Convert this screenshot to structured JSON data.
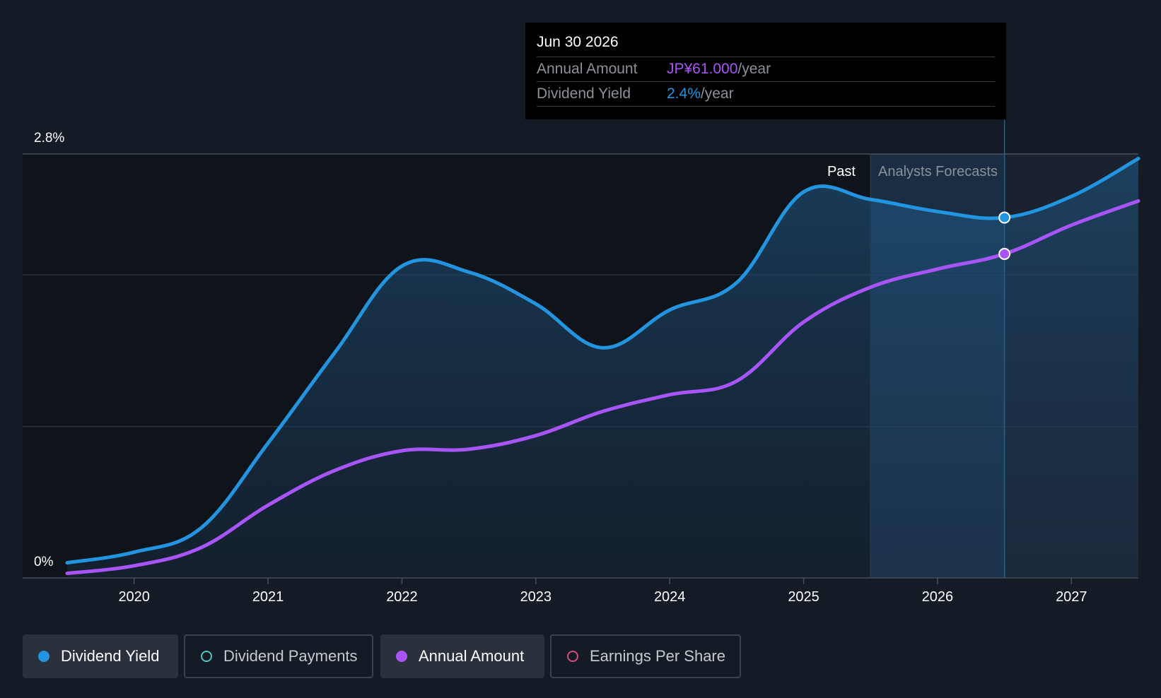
{
  "tooltip": {
    "date": "Jun 30 2026",
    "annual_amount_label": "Annual Amount",
    "annual_amount_value": "JP¥61.000",
    "dividend_yield_label": "Dividend Yield",
    "dividend_yield_value": "2.4%",
    "unit": "/year"
  },
  "regions": {
    "past": "Past",
    "forecast": "Analysts Forecasts"
  },
  "legend": [
    {
      "label": "Dividend Yield",
      "color": "#2394df",
      "active": true,
      "filled": true
    },
    {
      "label": "Dividend Payments",
      "color": "#4fc4c4",
      "active": false,
      "filled": false
    },
    {
      "label": "Annual Amount",
      "color": "#a855f7",
      "active": true,
      "filled": true
    },
    {
      "label": "Earnings Per Share",
      "color": "#d0507a",
      "active": false,
      "filled": false
    }
  ],
  "chart_data": {
    "type": "line",
    "y_ticks": [
      "2.8%",
      "0%"
    ],
    "ylim": [
      0,
      2.8
    ],
    "x_ticks": [
      "2020",
      "2021",
      "2022",
      "2023",
      "2024",
      "2025",
      "2026",
      "2027"
    ],
    "xlim": [
      2019.5,
      2027.5
    ],
    "forecast_start": 2025.5,
    "highlight_x": 2026.5,
    "series": [
      {
        "name": "Dividend Yield",
        "color": "#2394df",
        "points": [
          [
            2019.5,
            0.1
          ],
          [
            2020.0,
            0.17
          ],
          [
            2020.5,
            0.33
          ],
          [
            2021.0,
            0.89
          ],
          [
            2021.5,
            1.49
          ],
          [
            2022.0,
            2.06
          ],
          [
            2022.5,
            2.02
          ],
          [
            2023.0,
            1.81
          ],
          [
            2023.5,
            1.52
          ],
          [
            2024.0,
            1.77
          ],
          [
            2024.5,
            1.95
          ],
          [
            2025.0,
            2.55
          ],
          [
            2025.5,
            2.5
          ],
          [
            2026.0,
            2.42
          ],
          [
            2026.5,
            2.38
          ],
          [
            2027.0,
            2.52
          ],
          [
            2027.5,
            2.77
          ]
        ]
      },
      {
        "name": "Annual Amount",
        "color": "#a855f7",
        "points": [
          [
            2019.5,
            0.03
          ],
          [
            2020.0,
            0.08
          ],
          [
            2020.5,
            0.2
          ],
          [
            2021.0,
            0.48
          ],
          [
            2021.5,
            0.71
          ],
          [
            2022.0,
            0.84
          ],
          [
            2022.5,
            0.85
          ],
          [
            2023.0,
            0.94
          ],
          [
            2023.5,
            1.1
          ],
          [
            2024.0,
            1.21
          ],
          [
            2024.5,
            1.3
          ],
          [
            2025.0,
            1.69
          ],
          [
            2025.5,
            1.92
          ],
          [
            2026.0,
            2.04
          ],
          [
            2026.5,
            2.14
          ],
          [
            2027.0,
            2.33
          ],
          [
            2027.5,
            2.49
          ]
        ]
      }
    ]
  }
}
